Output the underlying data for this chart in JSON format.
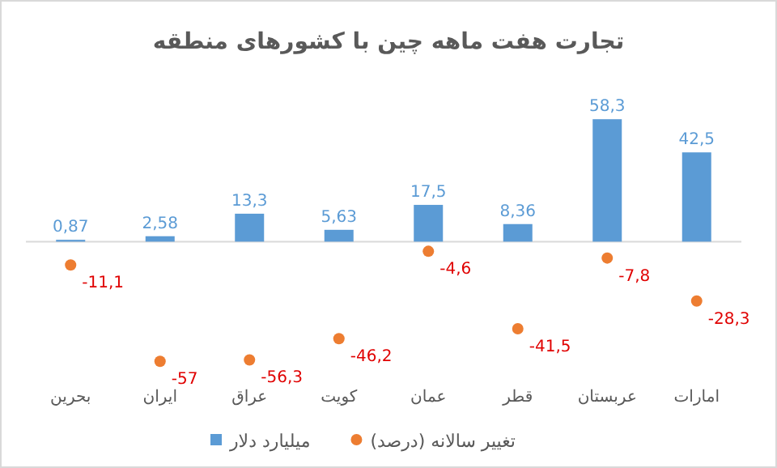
{
  "chart_data": {
    "type": "bar",
    "title": "تجارت هفت ماهه چین با کشورهای منطقه",
    "categories": [
      "بحرین",
      "ایران",
      "عراق",
      "کویت",
      "عمان",
      "قطر",
      "عربستان",
      "امارات"
    ],
    "series": [
      {
        "name": "میلیارد دلار",
        "color": "#5b9bd5",
        "values": [
          0.87,
          2.58,
          13.3,
          5.63,
          17.5,
          8.36,
          58.3,
          42.5
        ],
        "value_labels": [
          "0,87",
          "2,58",
          "13,3",
          "5,63",
          "17,5",
          "8,36",
          "58,3",
          "42,5"
        ]
      },
      {
        "name": "تغییر سالانه (درصد)",
        "type": "scatter",
        "color": "#ed7d31",
        "values": [
          -11.1,
          -57,
          -56.3,
          -46.2,
          -4.6,
          -41.5,
          -7.8,
          -28.3
        ],
        "value_labels": [
          "-11,1",
          "-57",
          "-56,3",
          "-46,2",
          "-4,6",
          "-41,5",
          "-7,8",
          "-28,3"
        ]
      }
    ],
    "tick_labels": "x",
    "legend": "bottom"
  }
}
